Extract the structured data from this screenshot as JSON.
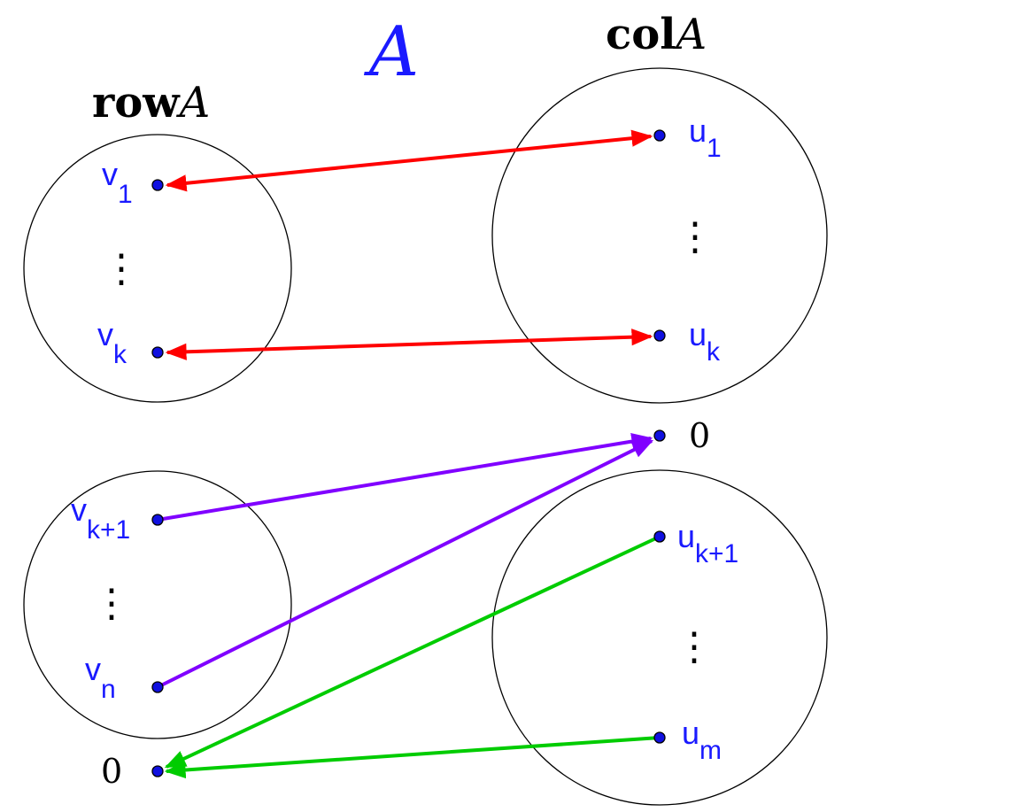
{
  "title": {
    "text": "A",
    "color": "#1a1aff"
  },
  "row_space": {
    "bold": "row",
    "italic": "A"
  },
  "col_space": {
    "bold": "col",
    "italic": "A"
  },
  "row_nodes": {
    "v1": {
      "base": "v",
      "sub": "1"
    },
    "vk": {
      "base": "v",
      "sub": "k"
    },
    "vk1": {
      "base": "v",
      "sub": "k+1"
    },
    "vn": {
      "base": "v",
      "sub": "n"
    }
  },
  "col_nodes": {
    "u1": {
      "base": "u",
      "sub": "1"
    },
    "uk": {
      "base": "u",
      "sub": "k"
    },
    "uk1": {
      "base": "u",
      "sub": "k+1"
    },
    "um": {
      "base": "u",
      "sub": "m"
    }
  },
  "zero_col": "0",
  "zero_row": "0",
  "ellipsis": "⋮",
  "colors": {
    "point": "#1010e0",
    "label": "#1a1aff",
    "red": "#ff0000",
    "purple": "#8000ff",
    "green": "#00cc00"
  }
}
